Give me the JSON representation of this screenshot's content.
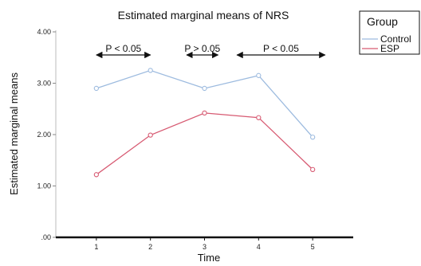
{
  "chart_data": {
    "type": "line",
    "title": "Estimated marginal means of NRS",
    "xlabel": "Time",
    "ylabel": "Estimated marginal means",
    "x": [
      1,
      2,
      3,
      4,
      5
    ],
    "x_tick_labels": [
      "1",
      "2",
      "3",
      "4",
      "5"
    ],
    "y_tick_labels": [
      ".00",
      "1.00",
      "2.00",
      "3.00",
      "4.00"
    ],
    "ylim": [
      0,
      4
    ],
    "grid": false,
    "legend": {
      "title": "Group",
      "placement": "top-right"
    },
    "series": [
      {
        "name": "Control",
        "color": "#9dbbdf",
        "values": [
          2.9,
          3.25,
          2.9,
          3.15,
          1.95
        ]
      },
      {
        "name": "ESP",
        "color": "#d75a72",
        "values": [
          1.22,
          1.99,
          2.42,
          2.33,
          1.32
        ]
      }
    ],
    "annotations": [
      {
        "text": "P < 0.05",
        "x_from": 1,
        "x_to": 2,
        "y": 3.55
      },
      {
        "text": "P > 0.05",
        "x_from": 2.67,
        "x_to": 3.25,
        "y": 3.55
      },
      {
        "text": "P < 0.05",
        "x_from": 3.6,
        "x_to": 5.23,
        "y": 3.55
      }
    ]
  }
}
